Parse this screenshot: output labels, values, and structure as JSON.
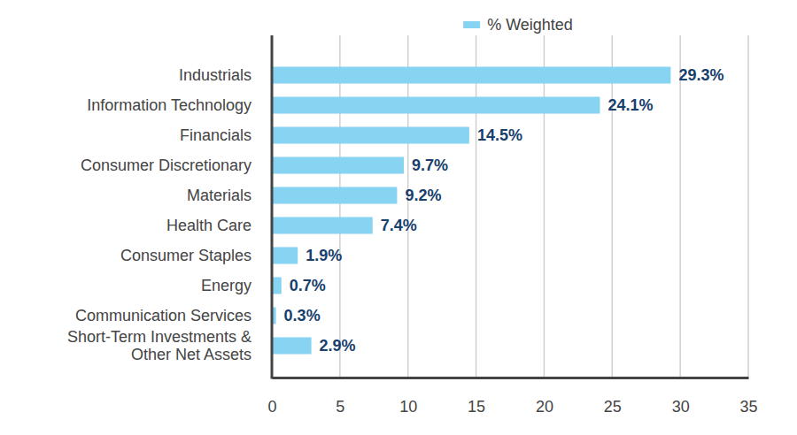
{
  "chart_data": {
    "type": "bar",
    "orientation": "horizontal",
    "categories": [
      "Industrials",
      "Information Technology",
      "Financials",
      "Consumer Discretionary",
      "Materials",
      "Health Care",
      "Consumer Staples",
      "Energy",
      "Communication Services",
      "Short-Term Investments & Other Net Assets"
    ],
    "series": [
      {
        "name": "% Weighted",
        "color": "#87d4f2",
        "values": [
          29.3,
          24.1,
          14.5,
          9.7,
          9.2,
          7.4,
          1.9,
          0.7,
          0.3,
          2.9
        ],
        "value_labels": [
          "29.3%",
          "24.1%",
          "14.5%",
          "9.7%",
          "9.2%",
          "7.4%",
          "1.9%",
          "0.7%",
          "0.3%",
          "2.9%"
        ]
      }
    ],
    "xlim": [
      0,
      35
    ],
    "xticks": [
      0,
      5,
      10,
      15,
      20,
      25,
      30,
      35
    ],
    "grid": true,
    "data_labels": true,
    "legend": "top"
  }
}
